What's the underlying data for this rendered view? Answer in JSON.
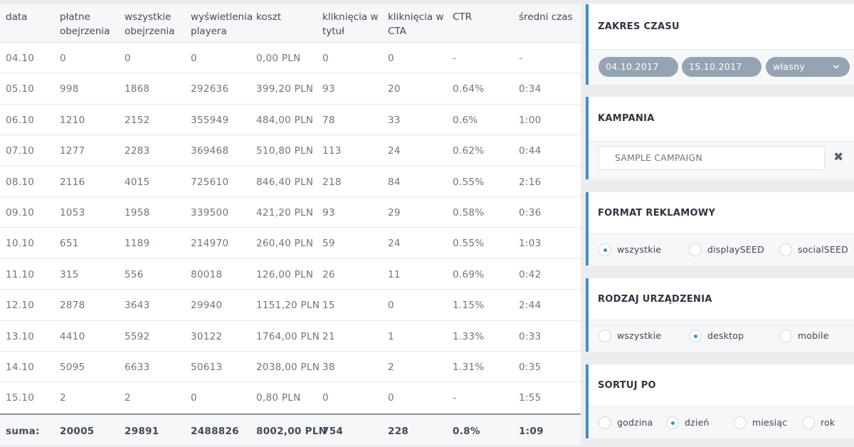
{
  "table": {
    "headers": [
      [
        "data",
        ""
      ],
      [
        "płatne",
        "obejrzenia"
      ],
      [
        "wszystkie",
        "obejrzenia"
      ],
      [
        "wyświetlenia",
        "playera"
      ],
      [
        "koszt",
        ""
      ],
      [
        "kliknięcia w",
        "tytuł"
      ],
      [
        "kliknięcia w",
        "CTA"
      ],
      [
        "CTR",
        ""
      ],
      [
        "średni czas",
        ""
      ]
    ],
    "rows": [
      [
        "04.10",
        "0",
        "0",
        "0",
        "0,00 PLN",
        "0",
        "0",
        "-",
        "-"
      ],
      [
        "05.10",
        "998",
        "1868",
        "292636",
        "399,20 PLN",
        "93",
        "20",
        "0.64%",
        "0:34"
      ],
      [
        "06.10",
        "1210",
        "2152",
        "355949",
        "484,00 PLN",
        "78",
        "33",
        "0.6%",
        "1:00"
      ],
      [
        "07.10",
        "1277",
        "2283",
        "369468",
        "510,80 PLN",
        "113",
        "24",
        "0.62%",
        "0:44"
      ],
      [
        "08.10",
        "2116",
        "4015",
        "725610",
        "846,40 PLN",
        "218",
        "84",
        "0.55%",
        "2:16"
      ],
      [
        "09.10",
        "1053",
        "1958",
        "339500",
        "421,20 PLN",
        "93",
        "29",
        "0.58%",
        "0:36"
      ],
      [
        "10.10",
        "651",
        "1189",
        "214970",
        "260,40 PLN",
        "59",
        "24",
        "0.55%",
        "1:03"
      ],
      [
        "11.10",
        "315",
        "556",
        "80018",
        "126,00 PLN",
        "26",
        "11",
        "0.69%",
        "0:42"
      ],
      [
        "12.10",
        "2878",
        "3643",
        "29940",
        "1151,20 PLN",
        "15",
        "0",
        "1.15%",
        "2:44"
      ],
      [
        "13.10",
        "4410",
        "5592",
        "30122",
        "1764,00 PLN",
        "21",
        "1",
        "1.33%",
        "0:33"
      ],
      [
        "14.10",
        "5095",
        "6633",
        "50613",
        "2038,00 PLN",
        "38",
        "2",
        "1.31%",
        "0:35"
      ],
      [
        "15.10",
        "2",
        "2",
        "0",
        "0,80 PLN",
        "0",
        "0",
        "-",
        "1:55"
      ]
    ],
    "sum": [
      "suma:",
      "20005",
      "29891",
      "2488826",
      "8002,00 PLN",
      "754",
      "228",
      "0.8%",
      "1:09"
    ]
  },
  "sidebar": {
    "time_range": {
      "title": "ZAKRES CZASU",
      "date_from": "04.10.2017",
      "date_to": "15.10.2017",
      "mode": "własny",
      "mode_icon": "chevron-down-icon"
    },
    "campaign": {
      "title": "KAMPANIA",
      "value": "SAMPLE CAMPAIGN",
      "clear_glyph": "✖"
    },
    "ad_format": {
      "title": "FORMAT REKLAMOWY",
      "options": [
        "wszystkie",
        "displaySEED",
        "socialSEED"
      ],
      "selected": 0
    },
    "device_type": {
      "title": "RODZAJ URZĄDZENIA",
      "options": [
        "wszystkie",
        "desktop",
        "mobile"
      ],
      "selected": 1
    },
    "sort_by": {
      "title": "SORTUJ PO",
      "options": [
        "godzina",
        "dzień",
        "miesiąc",
        "rok"
      ],
      "selected": 1
    }
  },
  "colors": {
    "accent": "#3d8fce",
    "pill": "#95a3b3",
    "header_bg": "#f6f7f9"
  }
}
